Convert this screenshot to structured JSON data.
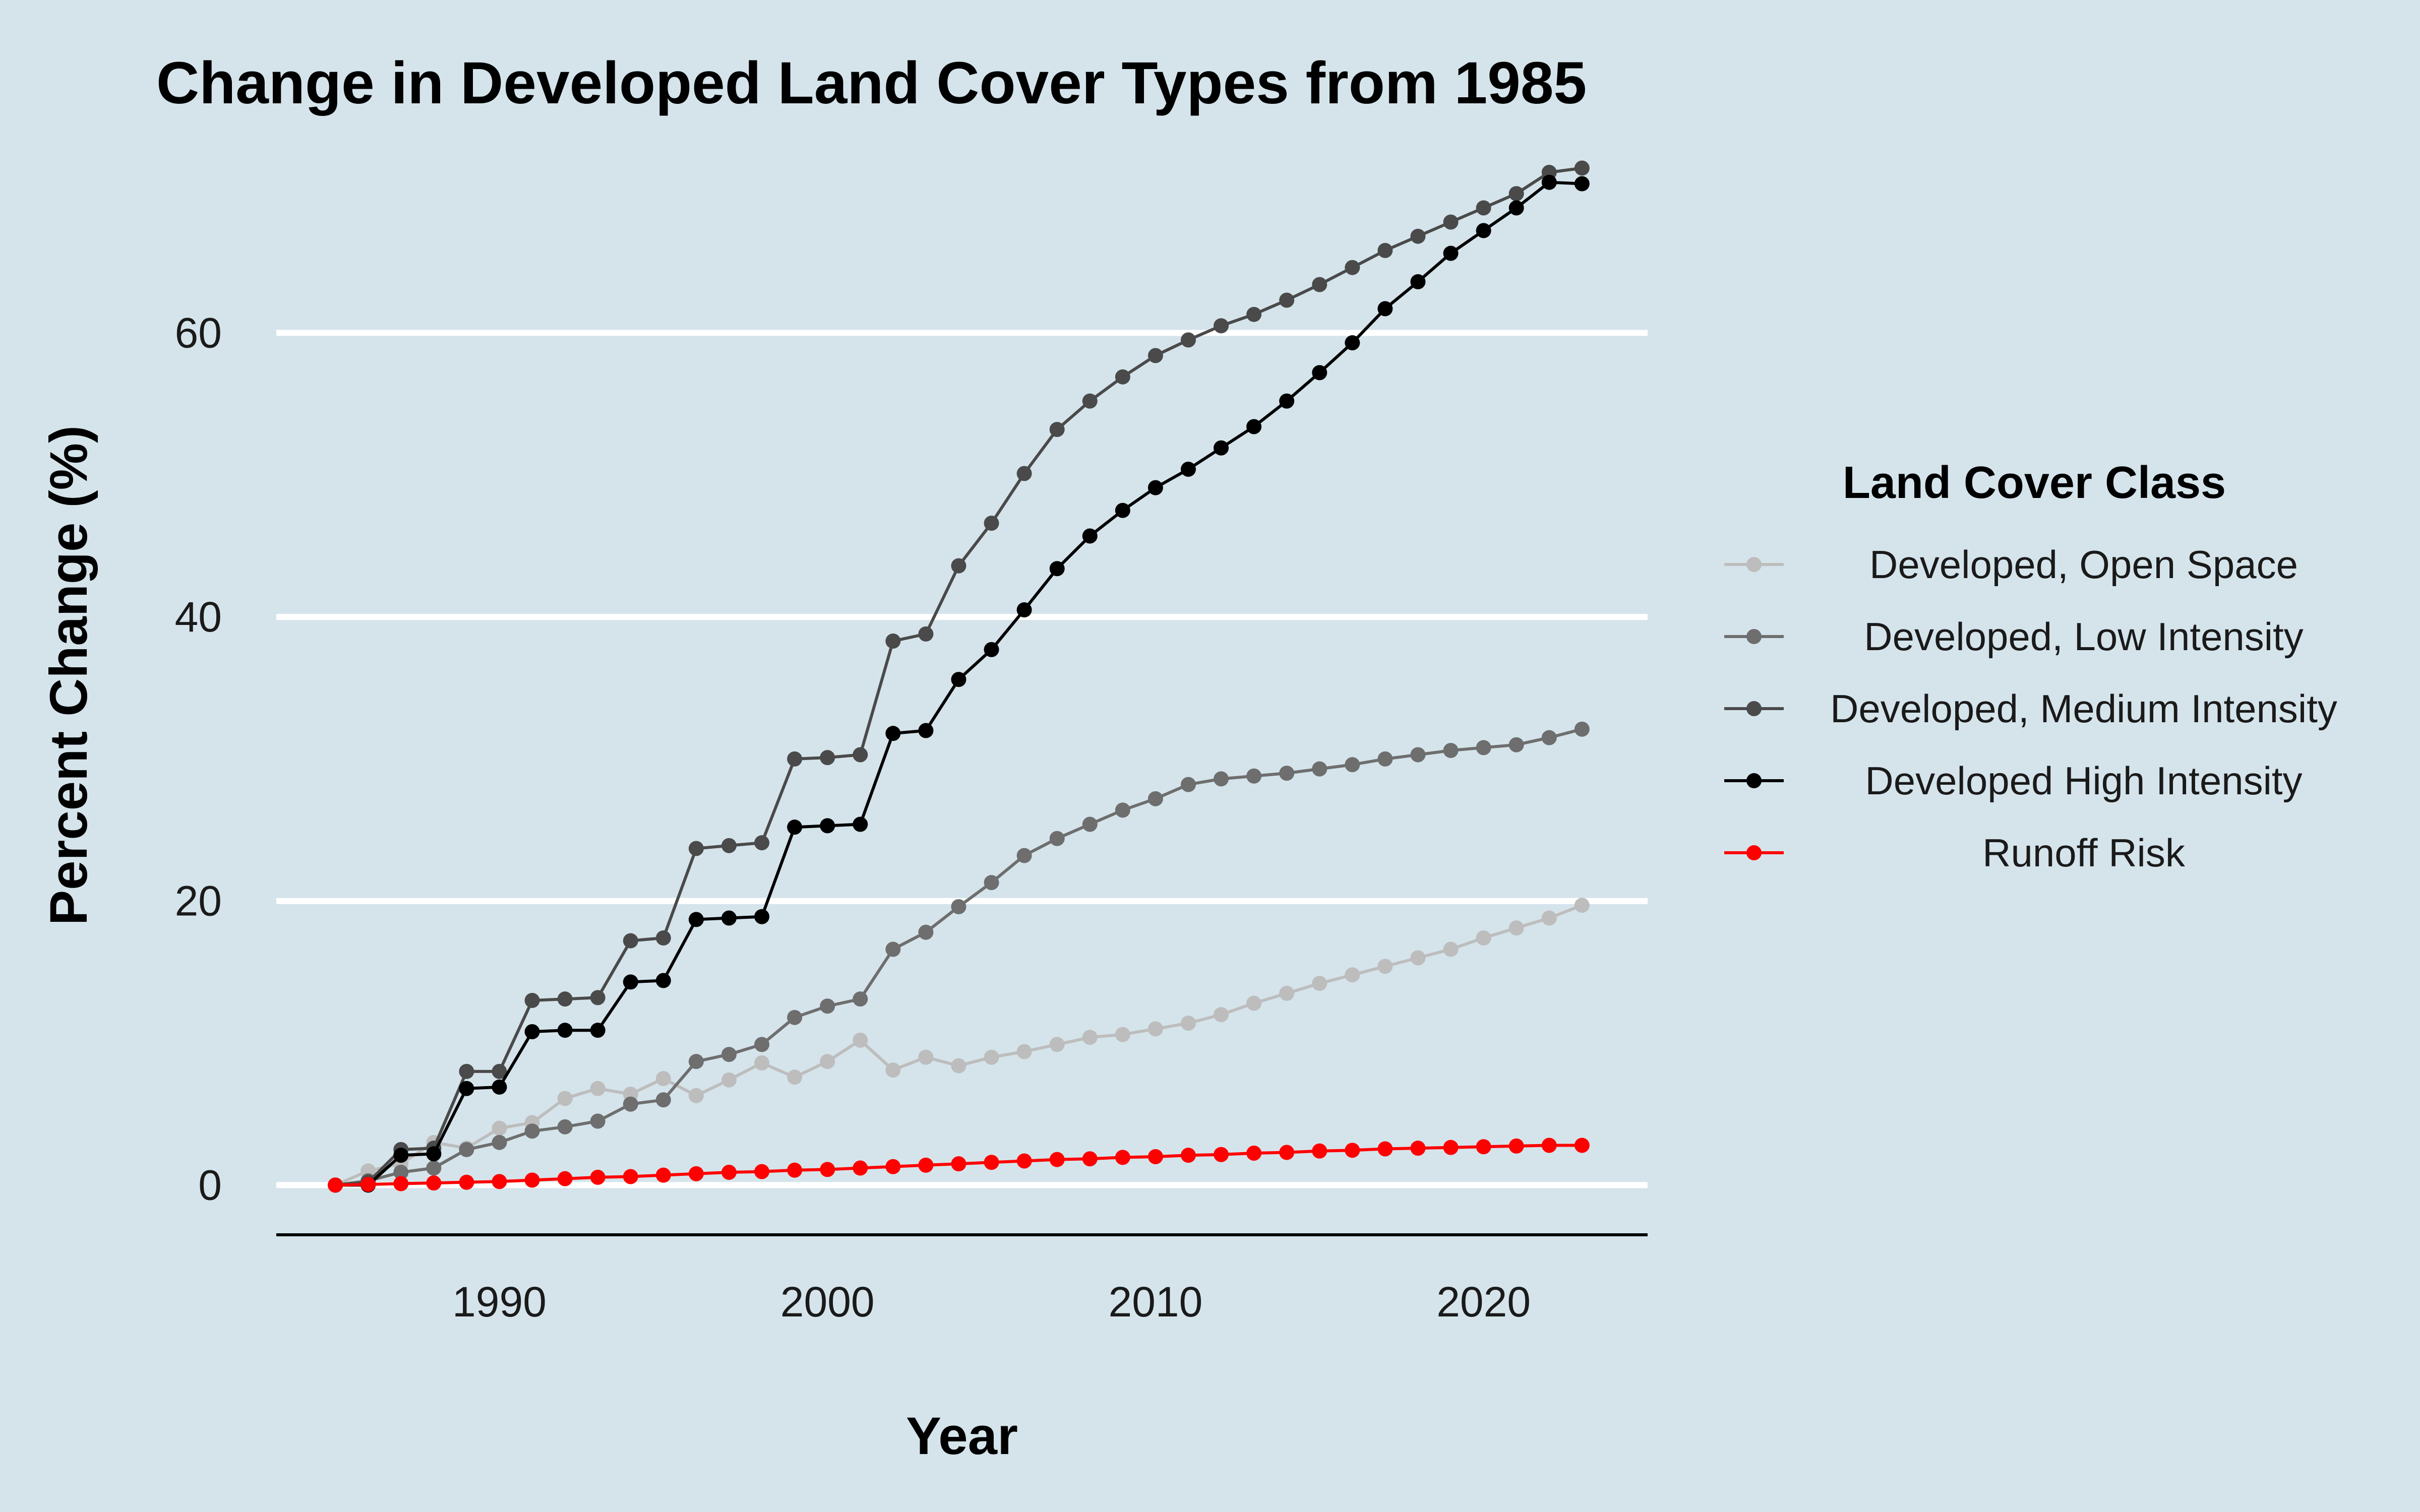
{
  "chart_data": {
    "type": "line",
    "title": "Change in Developed Land Cover Types from 1985",
    "xlabel": "Year",
    "ylabel": "Percent Change (%)",
    "xlim": [
      1983.2,
      2025.0
    ],
    "ylim": [
      -3.5,
      73.5
    ],
    "xticks": [
      1990,
      2000,
      2010,
      2020
    ],
    "yticks": [
      0,
      20,
      40,
      60
    ],
    "grid": "horizontal major lines",
    "legend": {
      "title": "Land Cover Class",
      "position": "right"
    },
    "x": [
      1985,
      1986,
      1987,
      1988,
      1989,
      1990,
      1991,
      1992,
      1993,
      1994,
      1995,
      1996,
      1997,
      1998,
      1999,
      2000,
      2001,
      2002,
      2003,
      2004,
      2005,
      2006,
      2007,
      2008,
      2009,
      2010,
      2011,
      2012,
      2013,
      2014,
      2015,
      2016,
      2017,
      2018,
      2019,
      2020,
      2021,
      2022,
      2023
    ],
    "series": [
      {
        "name": "Developed, Open Space",
        "color": "#bdbdbd",
        "values": [
          0,
          1.0,
          1.5,
          3.0,
          2.6,
          4.0,
          4.4,
          6.1,
          6.8,
          6.4,
          7.5,
          6.3,
          7.4,
          8.6,
          7.6,
          8.7,
          10.2,
          8.1,
          9.0,
          8.4,
          9.0,
          9.4,
          9.9,
          10.4,
          10.6,
          11.0,
          11.4,
          12.0,
          12.8,
          13.5,
          14.2,
          14.8,
          15.4,
          16.0,
          16.6,
          17.4,
          18.1,
          18.8,
          19.7
        ]
      },
      {
        "name": "Developed, Low Intensity",
        "color": "#6e6e6e",
        "values": [
          0,
          0.3,
          0.9,
          1.2,
          2.5,
          3.0,
          3.8,
          4.1,
          4.5,
          5.7,
          6.0,
          8.7,
          9.2,
          9.9,
          11.8,
          12.6,
          13.1,
          16.6,
          17.8,
          19.6,
          21.3,
          23.2,
          24.4,
          25.4,
          26.4,
          27.2,
          28.2,
          28.6,
          28.8,
          29.0,
          29.3,
          29.6,
          30.0,
          30.3,
          30.6,
          30.8,
          31.0,
          31.5,
          32.1
        ]
      },
      {
        "name": "Developed, Medium Intensity",
        "color": "#4a4a4a",
        "values": [
          0,
          0.2,
          2.5,
          2.6,
          8.0,
          8.0,
          13.0,
          13.1,
          13.2,
          17.2,
          17.4,
          23.7,
          23.9,
          24.1,
          30.0,
          30.1,
          30.3,
          38.3,
          38.8,
          43.6,
          46.6,
          50.1,
          53.2,
          55.2,
          56.9,
          58.4,
          59.5,
          60.5,
          61.3,
          62.3,
          63.4,
          64.6,
          65.8,
          66.8,
          67.8,
          68.8,
          69.8,
          71.3,
          71.6
        ]
      },
      {
        "name": "Developed High Intensity",
        "color": "#000000",
        "values": [
          0,
          0,
          2.1,
          2.2,
          6.8,
          6.9,
          10.8,
          10.9,
          10.9,
          14.3,
          14.4,
          18.7,
          18.8,
          18.9,
          25.2,
          25.3,
          25.4,
          31.8,
          32.0,
          35.6,
          37.7,
          40.5,
          43.4,
          45.7,
          47.5,
          49.1,
          50.4,
          51.9,
          53.4,
          55.2,
          57.2,
          59.3,
          61.7,
          63.6,
          65.6,
          67.2,
          68.8,
          70.6,
          70.5
        ]
      },
      {
        "name": "Runoff Risk",
        "color": "#ff0000",
        "values": [
          0,
          0.05,
          0.1,
          0.15,
          0.2,
          0.25,
          0.35,
          0.45,
          0.55,
          0.6,
          0.7,
          0.8,
          0.9,
          0.95,
          1.05,
          1.1,
          1.2,
          1.3,
          1.4,
          1.5,
          1.6,
          1.7,
          1.8,
          1.85,
          1.95,
          2.0,
          2.1,
          2.15,
          2.25,
          2.3,
          2.4,
          2.45,
          2.55,
          2.6,
          2.65,
          2.7,
          2.75,
          2.8,
          2.8
        ]
      }
    ]
  }
}
